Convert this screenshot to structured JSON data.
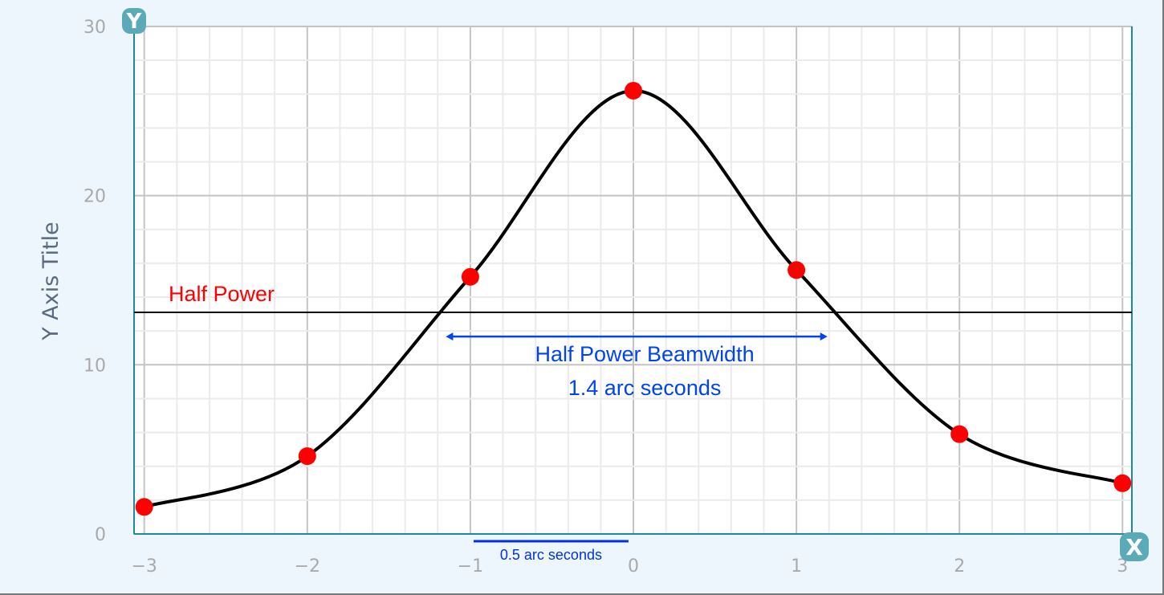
{
  "chart_data": {
    "type": "line",
    "title": "",
    "xlabel": "",
    "ylabel": "Y Axis Title",
    "xlim": [
      -3,
      3
    ],
    "ylim": [
      0,
      30
    ],
    "grid": true,
    "x_ticks": [
      "−3",
      "−2",
      "−1",
      "0",
      "1",
      "2",
      "3"
    ],
    "y_ticks": [
      "0",
      "10",
      "20",
      "30"
    ],
    "x_tick_values": [
      -3,
      -2,
      -1,
      0,
      1,
      2,
      3
    ],
    "y_tick_values": [
      0,
      10,
      20,
      30
    ],
    "series": [
      {
        "x": [
          -3,
          -2,
          -1,
          0,
          1,
          2,
          3
        ],
        "y": [
          1.6,
          4.6,
          15.2,
          26.2,
          15.6,
          5.9,
          3.0
        ],
        "line_color": "#000000",
        "marker_color": "#ff0000"
      }
    ],
    "annotations": {
      "half_power": {
        "label": "Half Power",
        "y": 13.1,
        "color": "#ff0000"
      },
      "beamwidth": {
        "line1": "Half Power Beamwidth",
        "line2": "1.4 arc seconds",
        "x_from": -1.15,
        "x_to": 1.19,
        "y": 12.0,
        "color": "#0044ee"
      },
      "scale_bar": {
        "label": "0.5 arc seconds",
        "x_from": -0.98,
        "x_to": -0.03,
        "color": "#0033dd"
      }
    },
    "axis_color": "#1e8a99",
    "axis_icons": {
      "y": "Y",
      "x": "X"
    }
  }
}
